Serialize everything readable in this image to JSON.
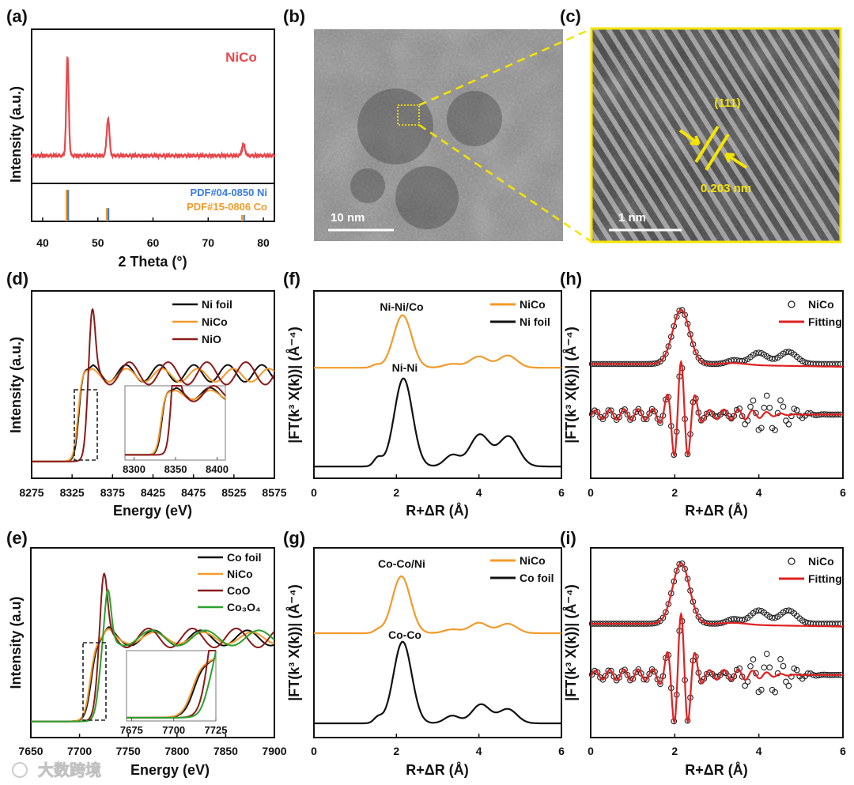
{
  "panel_labels": [
    "(a)",
    "(b)",
    "(c)",
    "(d)",
    "(e)",
    "(f)",
    "(g)",
    "(h)",
    "(i)"
  ],
  "watermark": "大数跨境",
  "images": {
    "b": {
      "scale_bar": "10 nm"
    },
    "c": {
      "scale_bar": "1 nm",
      "plane": "(111)",
      "d_spacing": "0.203 nm"
    }
  },
  "colors": {
    "red": "#e8474b",
    "blue": "#3a7be0",
    "orange": "#f39a2b",
    "black": "#111111",
    "darkred": "#8b1a1a",
    "green": "#2ca02c",
    "fitred": "#e02020",
    "yellow": "#f5e400"
  },
  "chart_data": [
    {
      "id": "a",
      "type": "line",
      "xlabel": "2 Theta (°)",
      "ylabel": "Intensity (a.u.)",
      "xlim": [
        38,
        82
      ],
      "xticks": [
        40,
        50,
        60,
        70,
        80
      ],
      "annotation": "NiCo",
      "series": [
        {
          "name": "NiCo",
          "color": "#e8474b",
          "model": "peaks",
          "baseline": 0.18,
          "noise": 0.008,
          "peaks": [
            [
              44.5,
              0.64,
              0.22
            ],
            [
              51.85,
              0.24,
              0.25
            ],
            [
              76.4,
              0.07,
              0.28
            ]
          ]
        }
      ],
      "references": [
        {
          "name": "PDF#04-0850 Ni",
          "color": "#3a7be0",
          "positions": [
            44.6,
            51.9,
            76.5
          ],
          "heights": [
            0.83,
            0.35,
            0.17
          ]
        },
        {
          "name": "PDF#15-0806 Co",
          "color": "#f39a2b",
          "positions": [
            44.3,
            51.6,
            76.1
          ],
          "heights": [
            0.83,
            0.35,
            0.17
          ]
        }
      ]
    },
    {
      "id": "d",
      "type": "line",
      "xlabel": "Energy (eV)",
      "ylabel": "Intensity (a.u.)",
      "xlim": [
        8275,
        8575
      ],
      "xticks": [
        8275,
        8325,
        8375,
        8425,
        8475,
        8525,
        8575
      ],
      "inset": {
        "xlim": [
          8289,
          8410
        ],
        "ylim": [
          0.05,
          0.62
        ],
        "xticks": [
          8300,
          8350,
          8400
        ]
      },
      "series": [
        {
          "name": "Ni foil",
          "color": "#111111",
          "model": "xanes",
          "pre": 0.09,
          "E0": 8333,
          "w": 2.5,
          "step": 0.47,
          "wl": [
            8340,
            0.03,
            4
          ],
          "osc": [
            42,
            0.045,
            0.3
          ]
        },
        {
          "name": "NiCo",
          "color": "#f39a2b",
          "model": "xanes",
          "pre": 0.09,
          "E0": 8332,
          "w": 2.6,
          "step": 0.46,
          "wl": [
            8340,
            0.03,
            4
          ],
          "osc": [
            44,
            0.035,
            0.4
          ]
        },
        {
          "name": "NiO",
          "color": "#8b1a1a",
          "model": "xanes",
          "pre": 0.09,
          "E0": 8343,
          "w": 2.2,
          "step": 0.47,
          "wl": [
            8350,
            0.36,
            3.5
          ],
          "osc": [
            48,
            0.06,
            2.0
          ]
        }
      ]
    },
    {
      "id": "e",
      "type": "line",
      "xlabel": "Energy (eV)",
      "ylabel": "Intensity (a.u)",
      "xlim": [
        7650,
        7900
      ],
      "xticks": [
        7650,
        7700,
        7750,
        7800,
        7850,
        7900
      ],
      "inset": {
        "xlim": [
          7672,
          7725
        ],
        "ylim": [
          0.06,
          0.6
        ],
        "xticks": [
          7675,
          7700,
          7725
        ]
      },
      "series": [
        {
          "name": "Co foil",
          "color": "#111111",
          "model": "xanes",
          "pre": 0.085,
          "E0": 7712,
          "w": 3,
          "step": 0.44,
          "wl": [
            7730,
            0.02,
            4
          ],
          "osc": [
            48,
            0.04,
            0.5
          ]
        },
        {
          "name": "NiCo",
          "color": "#f39a2b",
          "model": "xanes",
          "pre": 0.085,
          "E0": 7711,
          "w": 3,
          "step": 0.44,
          "wl": [
            7730,
            0.02,
            4
          ],
          "osc": [
            50,
            0.03,
            0.6
          ]
        },
        {
          "name": "CoO",
          "color": "#8b1a1a",
          "model": "xanes",
          "pre": 0.085,
          "E0": 7718,
          "w": 2.4,
          "step": 0.44,
          "wl": [
            7725,
            0.36,
            3.5
          ],
          "osc": [
            45,
            0.05,
            1.6
          ]
        },
        {
          "name": "Co₃O₄",
          "color": "#2ca02c",
          "model": "xanes",
          "pre": 0.085,
          "E0": 7720,
          "w": 2.4,
          "step": 0.44,
          "wl": [
            7729,
            0.26,
            3.2
          ],
          "osc": [
            55,
            0.04,
            2.6
          ]
        }
      ]
    },
    {
      "id": "f",
      "type": "line",
      "xlabel": "R+ΔR (Å)",
      "ylabel": "|FT(k³ X(k))| (Å⁻⁴)",
      "xlim": [
        0,
        6
      ],
      "xticks": [
        0,
        2,
        4,
        6
      ],
      "annotations": [
        "Ni-Ni/Co",
        "Ni-Ni"
      ],
      "series": [
        {
          "name": "NiCo",
          "color": "#f39a2b",
          "model": "peaks",
          "baseline": 0.59,
          "peaks": [
            [
              2.15,
              0.28,
              0.22
            ],
            [
              4.0,
              0.06,
              0.22
            ],
            [
              4.7,
              0.065,
              0.22
            ],
            [
              3.35,
              0.02,
              0.2
            ],
            [
              1.5,
              0.015,
              0.1
            ]
          ]
        },
        {
          "name": "Ni foil",
          "color": "#111111",
          "model": "peaks",
          "baseline": 0.063,
          "peaks": [
            [
              2.17,
              0.47,
              0.22
            ],
            [
              4.02,
              0.17,
              0.24
            ],
            [
              4.72,
              0.16,
              0.24
            ],
            [
              3.35,
              0.06,
              0.18
            ],
            [
              1.55,
              0.045,
              0.1
            ]
          ]
        }
      ]
    },
    {
      "id": "g",
      "type": "line",
      "xlabel": "R+ΔR (Å)",
      "ylabel": "|FT(k³ X(k))| (Å⁻⁴)",
      "xlim": [
        0,
        6
      ],
      "xticks": [
        0,
        2,
        4,
        6
      ],
      "annotations": [
        "Co-Co/Ni",
        "Co-Co"
      ],
      "series": [
        {
          "name": "NiCo",
          "color": "#f39a2b",
          "model": "peaks",
          "baseline": 0.55,
          "peaks": [
            [
              2.12,
              0.3,
              0.22
            ],
            [
              4.0,
              0.055,
              0.22
            ],
            [
              4.7,
              0.05,
              0.22
            ],
            [
              3.35,
              0.02,
              0.2
            ],
            [
              1.55,
              0.015,
              0.1
            ]
          ]
        },
        {
          "name": "Co foil",
          "color": "#111111",
          "model": "peaks",
          "baseline": 0.075,
          "peaks": [
            [
              2.15,
              0.43,
              0.22
            ],
            [
              4.05,
              0.1,
              0.22
            ],
            [
              4.7,
              0.075,
              0.22
            ],
            [
              3.35,
              0.04,
              0.18
            ],
            [
              1.55,
              0.03,
              0.1
            ]
          ]
        }
      ]
    },
    {
      "id": "h",
      "type": "scatter+line",
      "xlabel": "R+ΔR (Å)",
      "ylabel": "|FT(k³ X(k))| (Å⁻⁴)",
      "xlim": [
        0,
        6
      ],
      "xticks": [
        0,
        2,
        4,
        6
      ],
      "series": [
        {
          "name": "NiCo",
          "color": "#111111",
          "marker": "circle",
          "model": "peaks",
          "baseline": 0.61,
          "peaks": [
            [
              2.15,
              0.29,
              0.2
            ],
            [
              4.0,
              0.06,
              0.2
            ],
            [
              4.7,
              0.065,
              0.2
            ],
            [
              3.4,
              0.02,
              0.15
            ]
          ]
        },
        {
          "name": "Fitting",
          "color": "#e02020",
          "model": "peaks",
          "baseline": 0.61,
          "peaks": [
            [
              2.15,
              0.29,
              0.2
            ],
            [
              3.4,
              0.01,
              0.3
            ]
          ],
          "tilt": -0.015
        },
        {
          "name": "NiCo",
          "color": "#111111",
          "marker": "circle",
          "model": "osc",
          "center": 0.34,
          "period": 0.34,
          "envelopes": [
            [
              2.15,
              0.26,
              0.22
            ],
            [
              1.0,
              0.03,
              1.2
            ],
            [
              4.2,
              0.1,
              0.45
            ]
          ]
        },
        {
          "name": "Fitting",
          "color": "#e02020",
          "model": "osc",
          "center": 0.34,
          "period": 0.34,
          "envelopes": [
            [
              2.15,
              0.26,
              0.22
            ],
            [
              1.0,
              0.03,
              1.2
            ],
            [
              3.5,
              0.025,
              0.6
            ]
          ]
        }
      ]
    },
    {
      "id": "i",
      "type": "scatter+line",
      "xlabel": "R+ΔR (Å)",
      "ylabel": "|FT(k³ X(k))| (Å⁻⁴)",
      "xlim": [
        0,
        6
      ],
      "xticks": [
        0,
        2,
        4,
        6
      ],
      "series": [
        {
          "name": "NiCo",
          "color": "#111111",
          "marker": "circle",
          "model": "peaks",
          "baseline": 0.6,
          "peaks": [
            [
              2.15,
              0.32,
              0.2
            ],
            [
              4.0,
              0.07,
              0.2
            ],
            [
              4.7,
              0.07,
              0.2
            ],
            [
              3.4,
              0.025,
              0.15
            ]
          ]
        },
        {
          "name": "Fitting",
          "color": "#e02020",
          "model": "peaks",
          "baseline": 0.6,
          "peaks": [
            [
              2.15,
              0.32,
              0.2
            ],
            [
              3.4,
              0.01,
              0.3
            ]
          ],
          "tilt": -0.015
        },
        {
          "name": "NiCo",
          "color": "#111111",
          "marker": "circle",
          "model": "osc",
          "center": 0.33,
          "period": 0.34,
          "envelopes": [
            [
              2.15,
              0.3,
              0.22
            ],
            [
              1.0,
              0.03,
              1.2
            ],
            [
              4.2,
              0.11,
              0.45
            ]
          ]
        },
        {
          "name": "Fitting",
          "color": "#e02020",
          "model": "osc",
          "center": 0.33,
          "period": 0.34,
          "envelopes": [
            [
              2.15,
              0.3,
              0.22
            ],
            [
              1.0,
              0.03,
              1.2
            ],
            [
              3.5,
              0.025,
              0.6
            ]
          ]
        }
      ]
    }
  ]
}
